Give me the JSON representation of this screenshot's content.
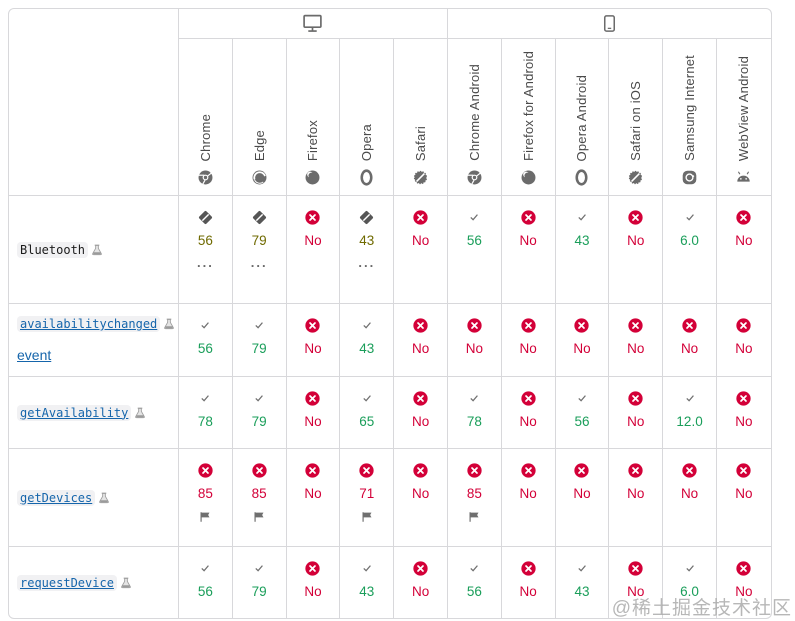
{
  "watermark": {
    "text": "@稀土掘金技术社区"
  },
  "legend": {
    "support_colors": {
      "yes": "#1a9e5a",
      "partial": "#6f6a00",
      "no": "#d30038"
    },
    "link_color": "#1565ab",
    "plain_feature_color": "#1b1b1b",
    "dots": "..."
  },
  "header": {
    "groups": [
      {
        "id": "desktop",
        "icon": "desktop-icon",
        "span": 5
      },
      {
        "id": "mobile",
        "icon": "mobile-icon",
        "span": 6
      }
    ],
    "browsers": [
      {
        "label": "Chrome",
        "icon": "chrome-icon"
      },
      {
        "label": "Edge",
        "icon": "edge-icon"
      },
      {
        "label": "Firefox",
        "icon": "firefox-icon"
      },
      {
        "label": "Opera",
        "icon": "opera-icon"
      },
      {
        "label": "Safari",
        "icon": "safari-icon"
      },
      {
        "label": "Chrome Android",
        "icon": "chrome-icon"
      },
      {
        "label": "Firefox for Android",
        "icon": "firefox-icon"
      },
      {
        "label": "Opera Android",
        "icon": "opera-icon"
      },
      {
        "label": "Safari on iOS",
        "icon": "safari-icon"
      },
      {
        "label": "Samsung Internet",
        "icon": "samsung-icon"
      },
      {
        "label": "WebView Android",
        "icon": "android-icon"
      }
    ]
  },
  "rows": [
    {
      "feature": {
        "code": "Bluetooth",
        "suffix": "",
        "link": false,
        "experimental": true
      },
      "cells": [
        {
          "support": "partial",
          "value": "56",
          "note": "dots"
        },
        {
          "support": "partial",
          "value": "79",
          "note": "dots"
        },
        {
          "support": "no",
          "value": "No"
        },
        {
          "support": "partial",
          "value": "43",
          "note": "dots"
        },
        {
          "support": "no",
          "value": "No"
        },
        {
          "support": "yes",
          "value": "56"
        },
        {
          "support": "no",
          "value": "No"
        },
        {
          "support": "yes",
          "value": "43"
        },
        {
          "support": "no",
          "value": "No"
        },
        {
          "support": "yes",
          "value": "6.0"
        },
        {
          "support": "no",
          "value": "No"
        }
      ]
    },
    {
      "feature": {
        "code": "availabilitychanged",
        "suffix": "event",
        "link": true,
        "experimental": true
      },
      "cells": [
        {
          "support": "yes",
          "value": "56"
        },
        {
          "support": "yes",
          "value": "79"
        },
        {
          "support": "no",
          "value": "No"
        },
        {
          "support": "yes",
          "value": "43"
        },
        {
          "support": "no",
          "value": "No"
        },
        {
          "support": "no",
          "value": "No"
        },
        {
          "support": "no",
          "value": "No"
        },
        {
          "support": "no",
          "value": "No"
        },
        {
          "support": "no",
          "value": "No"
        },
        {
          "support": "no",
          "value": "No"
        },
        {
          "support": "no",
          "value": "No"
        }
      ]
    },
    {
      "feature": {
        "code": "getAvailability",
        "suffix": "",
        "link": true,
        "experimental": true
      },
      "cells": [
        {
          "support": "yes",
          "value": "78"
        },
        {
          "support": "yes",
          "value": "79"
        },
        {
          "support": "no",
          "value": "No"
        },
        {
          "support": "yes",
          "value": "65"
        },
        {
          "support": "no",
          "value": "No"
        },
        {
          "support": "yes",
          "value": "78"
        },
        {
          "support": "no",
          "value": "No"
        },
        {
          "support": "yes",
          "value": "56"
        },
        {
          "support": "no",
          "value": "No"
        },
        {
          "support": "yes",
          "value": "12.0"
        },
        {
          "support": "no",
          "value": "No"
        }
      ]
    },
    {
      "feature": {
        "code": "getDevices",
        "suffix": "",
        "link": true,
        "experimental": true
      },
      "cells": [
        {
          "support": "no",
          "value": "85",
          "note": "flag"
        },
        {
          "support": "no",
          "value": "85",
          "note": "flag"
        },
        {
          "support": "no",
          "value": "No"
        },
        {
          "support": "no",
          "value": "71",
          "note": "flag"
        },
        {
          "support": "no",
          "value": "No"
        },
        {
          "support": "no",
          "value": "85",
          "note": "flag"
        },
        {
          "support": "no",
          "value": "No"
        },
        {
          "support": "no",
          "value": "No"
        },
        {
          "support": "no",
          "value": "No"
        },
        {
          "support": "no",
          "value": "No"
        },
        {
          "support": "no",
          "value": "No"
        }
      ]
    },
    {
      "feature": {
        "code": "requestDevice",
        "suffix": "",
        "link": true,
        "experimental": true
      },
      "cells": [
        {
          "support": "yes",
          "value": "56"
        },
        {
          "support": "yes",
          "value": "79"
        },
        {
          "support": "no",
          "value": "No"
        },
        {
          "support": "yes",
          "value": "43"
        },
        {
          "support": "no",
          "value": "No"
        },
        {
          "support": "yes",
          "value": "56"
        },
        {
          "support": "no",
          "value": "No"
        },
        {
          "support": "yes",
          "value": "43"
        },
        {
          "support": "no",
          "value": "No"
        },
        {
          "support": "yes",
          "value": "6.0"
        },
        {
          "support": "no",
          "value": "No"
        }
      ]
    }
  ]
}
